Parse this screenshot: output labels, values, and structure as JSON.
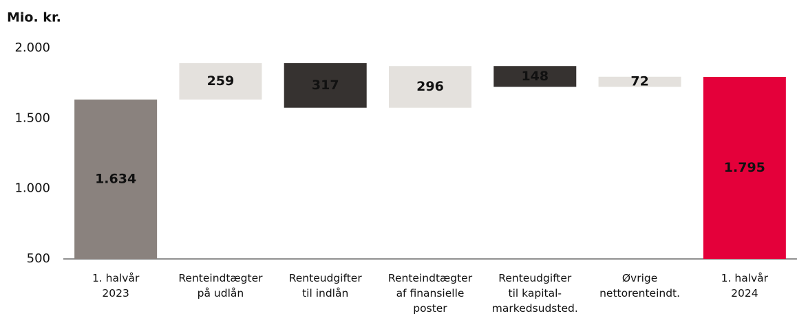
{
  "chart_data": {
    "type": "waterfall",
    "ylabel": "Mio. kr.",
    "categories": [
      "1. halvår\n2023",
      "Renteindtægter\npå udlån",
      "Renteudgifter\ntil indlån",
      "Renteindtægter\naf finansielle\nposter",
      "Renteudgifter\ntil kapital-\nmarkedsudsted.",
      "Øvrige\nnettorenteindt.",
      "1. halvår\n2024"
    ],
    "measures": [
      "absolute",
      "relative",
      "relative",
      "relative",
      "relative",
      "relative",
      "total"
    ],
    "values": [
      1634,
      259,
      -317,
      296,
      -148,
      72,
      1795
    ],
    "value_labels": [
      "1.634",
      "259",
      "317",
      "296",
      "148",
      "72",
      "1.795"
    ],
    "colors": {
      "absolute": "#8a827e",
      "increase": "#e4e1dd",
      "decrease": "#363230",
      "total": "#e4003a"
    },
    "ylim": [
      500,
      2000
    ],
    "yticks": [
      500,
      {
        "value": 1000,
        "label": "1.000"
      },
      {
        "value": 1500,
        "label": "1.500"
      },
      {
        "value": 2000,
        "label": "2.000"
      }
    ]
  }
}
